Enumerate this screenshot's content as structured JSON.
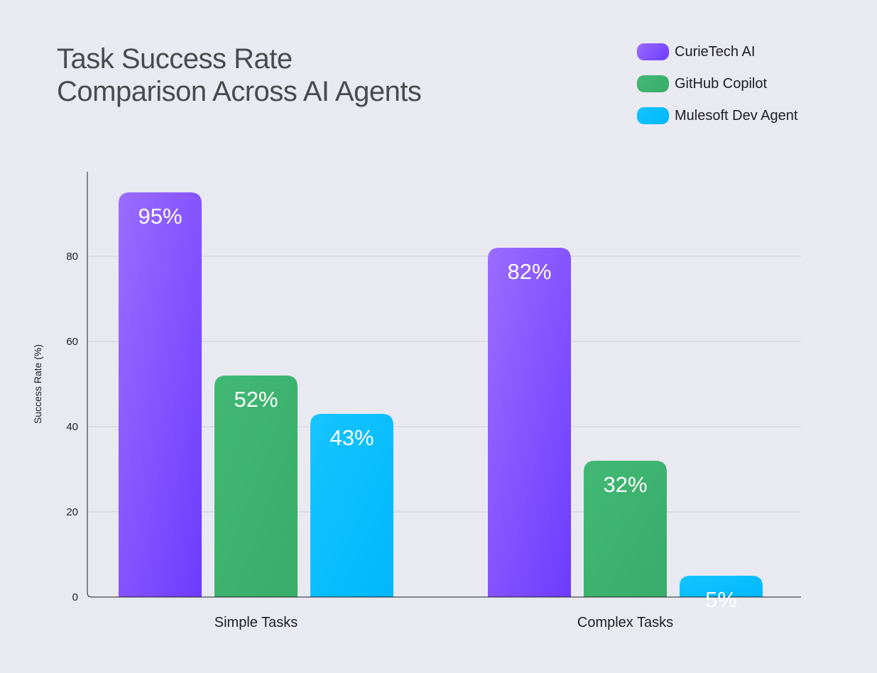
{
  "chart_data": {
    "type": "bar",
    "title_lines": [
      "Task Success Rate",
      "Comparison Across AI Agents"
    ],
    "ylabel": "Success Rate (%)",
    "xlabel": "",
    "categories": [
      "Simple Tasks",
      "Complex Tasks"
    ],
    "series": [
      {
        "name": "CurieTech AI",
        "values": [
          95,
          82
        ],
        "labels": [
          "95%",
          "82%"
        ],
        "color": "#9b6cff",
        "color_dark": "#6e3bff"
      },
      {
        "name": "GitHub Copilot",
        "values": [
          52,
          32
        ],
        "labels": [
          "52%",
          "32%"
        ],
        "color": "#41b873",
        "color_dark": "#37ad69"
      },
      {
        "name": "Mulesoft Dev Agent",
        "values": [
          43,
          5
        ],
        "labels": [
          "43%",
          "5%"
        ],
        "color": "#16c4ff",
        "color_dark": "#00b8fc"
      }
    ],
    "yticks": [
      0,
      20,
      40,
      60,
      80
    ],
    "ylim": [
      0,
      97
    ],
    "grid": true,
    "legend_position": "top-right"
  }
}
